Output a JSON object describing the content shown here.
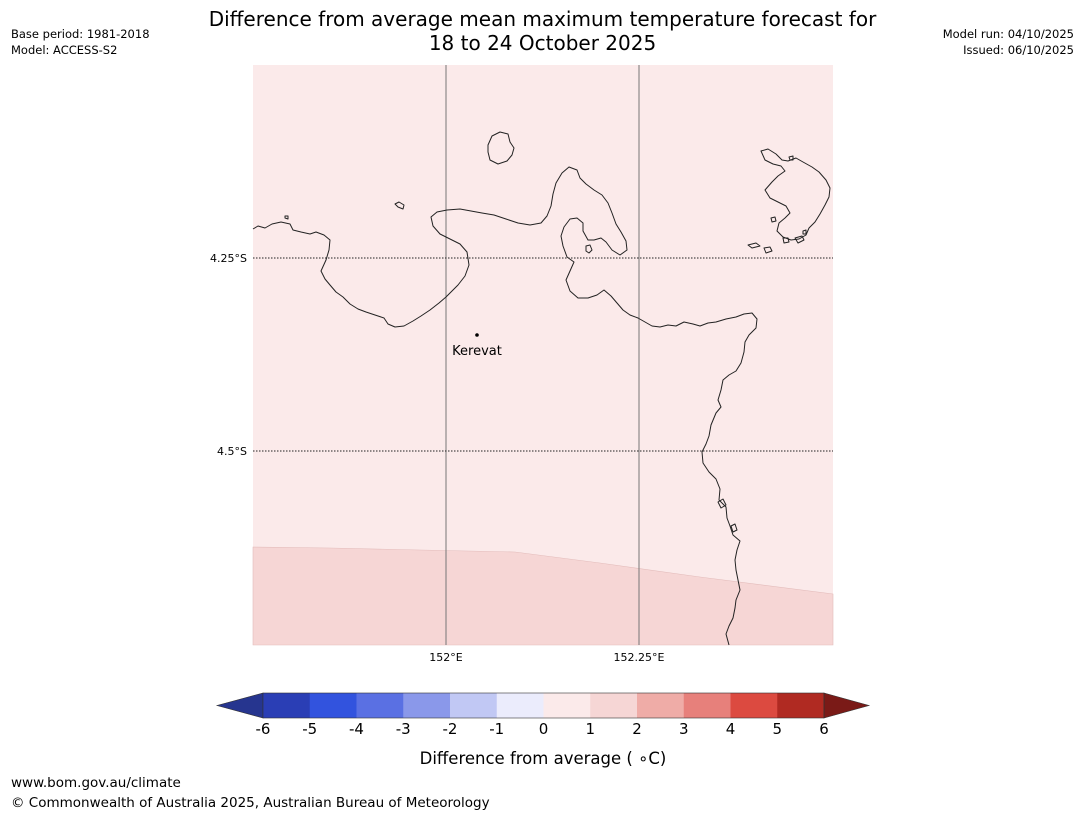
{
  "header": {
    "title_line1": "Difference from average mean maximum temperature forecast for",
    "title_line2": "18 to 24 October 2025",
    "base_period": "Base period: 1981-2018",
    "model": "Model: ACCESS-S2",
    "model_run": "Model run: 04/10/2025",
    "issued": "Issued: 06/10/2025"
  },
  "map": {
    "lon_labels": [
      "152°E",
      "152.25°E"
    ],
    "lat_labels": [
      "4.25°S",
      "4.5°S"
    ],
    "place": "Kerevat",
    "fill_colors": {
      "zero_to_one": "#fbeaea",
      "one_to_two": "#f6d6d5"
    },
    "coastline_color": "#222222"
  },
  "colorbar": {
    "ticks": [
      "-6",
      "-5",
      "-4",
      "-3",
      "-2",
      "-1",
      "0",
      "1",
      "2",
      "3",
      "4",
      "5",
      "6"
    ],
    "label": "Difference from average ( ∘C)",
    "colors": [
      "#26358f",
      "#2a3eb5",
      "#3253de",
      "#5a70e3",
      "#8a98ea",
      "#c1c8f4",
      "#ebecfc",
      "#fbeaea",
      "#f6d6d5",
      "#efaca7",
      "#e7807b",
      "#dc4a40",
      "#b02a22",
      "#7a1a17"
    ]
  },
  "footer": {
    "url": "www.bom.gov.au/climate",
    "copyright": "© Commonwealth of Australia 2025, Australian Bureau of Meteorology"
  }
}
